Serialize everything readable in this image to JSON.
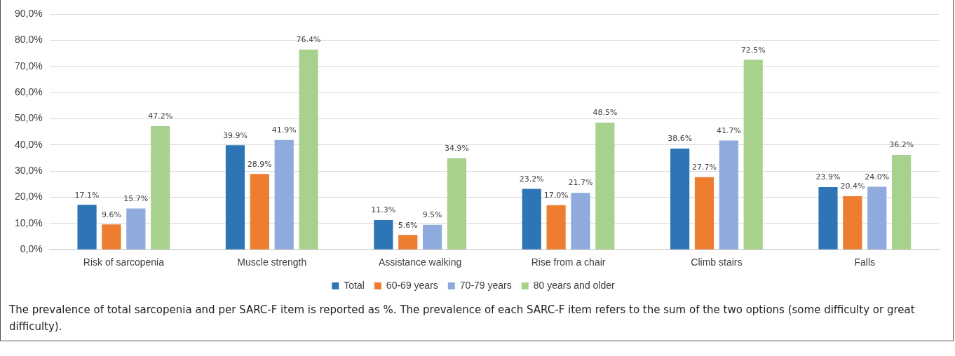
{
  "chart_data": {
    "type": "bar",
    "categories": [
      "Risk of sarcopenia",
      "Muscle strength",
      "Assistance walking",
      "Rise from a chair",
      "Climb stairs",
      "Falls"
    ],
    "series": [
      {
        "name": "Total",
        "color": "#2e75b6",
        "values": [
          17.1,
          39.9,
          11.3,
          23.2,
          38.6,
          23.9
        ],
        "value_labels": [
          "17.1%",
          "39.9%",
          "11.3%",
          "23.2%",
          "38.6%",
          "23.9%"
        ]
      },
      {
        "name": "60-69 years",
        "color": "#ed7d31",
        "values": [
          9.6,
          28.9,
          5.6,
          17.0,
          27.7,
          20.4
        ],
        "value_labels": [
          "9.6%",
          "28.9%",
          "5.6%",
          "17.0%",
          "27.7%",
          "20.4%"
        ]
      },
      {
        "name": "70-79 years",
        "color": "#8faadc",
        "values": [
          15.7,
          41.9,
          9.5,
          21.7,
          41.7,
          24.0
        ],
        "value_labels": [
          "15.7%",
          "41.9%",
          "9.5%",
          "21.7%",
          "41.7%",
          "24.0%"
        ]
      },
      {
        "name": "80 years and older",
        "color": "#a9d18e",
        "values": [
          47.2,
          76.4,
          34.9,
          48.5,
          72.5,
          36.2
        ],
        "value_labels": [
          "47.2%",
          "76.4%",
          "34.9%",
          "48.5%",
          "72.5%",
          "36.2%"
        ]
      }
    ],
    "ylim": [
      0,
      90
    ],
    "yticks": [
      {
        "value": 0,
        "label": "0,0%"
      },
      {
        "value": 10,
        "label": "10,0%"
      },
      {
        "value": 20,
        "label": "20,0%"
      },
      {
        "value": 30,
        "label": "30,0%"
      },
      {
        "value": 40,
        "label": "40,0%"
      },
      {
        "value": 50,
        "label": "50,0%"
      },
      {
        "value": 60,
        "label": "60,0%"
      },
      {
        "value": 70,
        "label": "70,0%"
      },
      {
        "value": 80,
        "label": "80,0%"
      },
      {
        "value": 90,
        "label": "90,0%"
      }
    ],
    "grid": "y",
    "legend": "bottom",
    "annotations": [
      "The prevalence of total sarcopenia and per SARC-F item is reported as %. The prevalence of each SARC-F item refers to the sum of the two options (some difficulty or great difficulty)."
    ]
  }
}
